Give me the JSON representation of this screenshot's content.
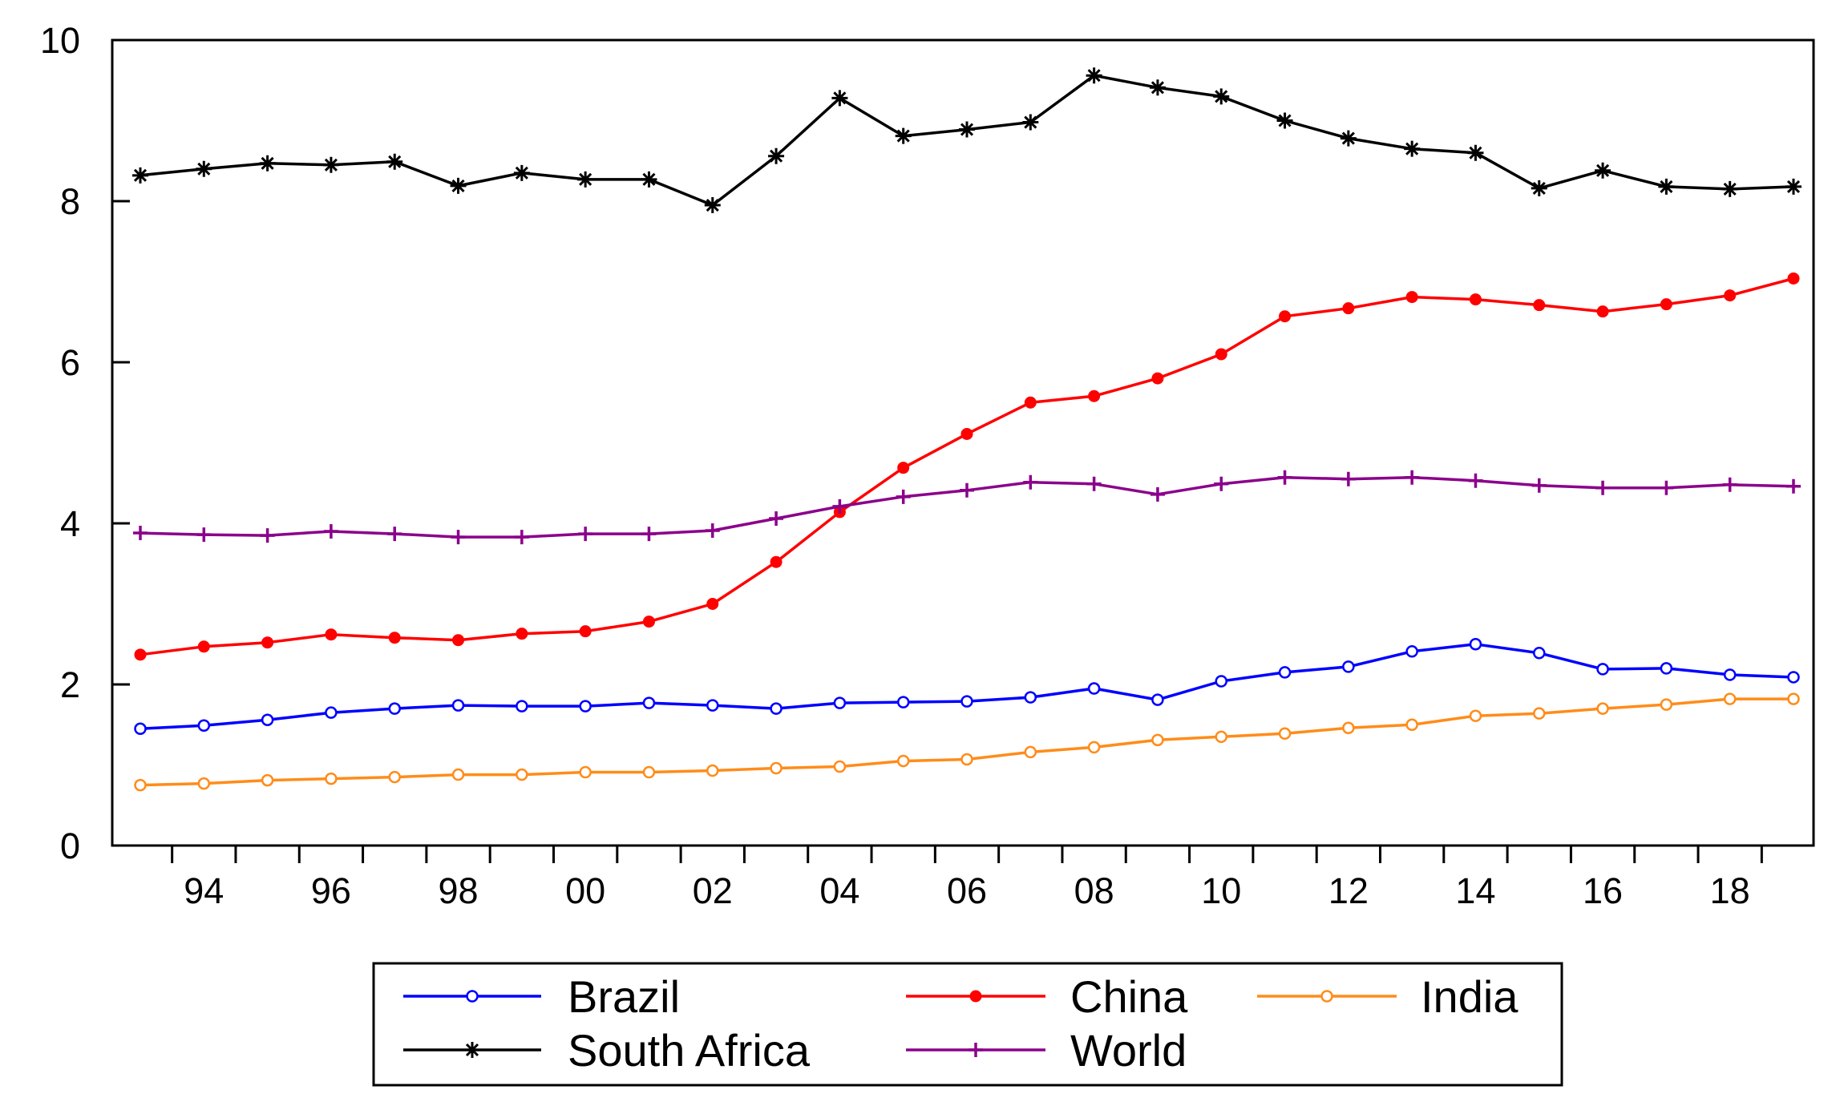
{
  "chart_data": {
    "type": "line",
    "title": "",
    "xlabel": "",
    "ylabel": "",
    "x": [
      1993,
      1994,
      1995,
      1996,
      1997,
      1998,
      1999,
      2000,
      2001,
      2002,
      2003,
      2004,
      2005,
      2006,
      2007,
      2008,
      2009,
      2010,
      2011,
      2012,
      2013,
      2014,
      2015,
      2016,
      2017,
      2018,
      2019
    ],
    "x_tick_years": [
      1994,
      1996,
      1998,
      2000,
      2002,
      2004,
      2006,
      2008,
      2010,
      2012,
      2014,
      2016,
      2018
    ],
    "x_tick_labels": [
      "94",
      "96",
      "98",
      "00",
      "02",
      "04",
      "06",
      "08",
      "10",
      "12",
      "14",
      "16",
      "18"
    ],
    "ylim": [
      0,
      10
    ],
    "y_ticks": [
      0,
      2,
      4,
      6,
      8,
      10
    ],
    "y_tick_labels": [
      "0",
      "2",
      "4",
      "6",
      "8",
      "10"
    ],
    "grid": false,
    "legend_position": "bottom",
    "series": [
      {
        "name": "Brazil",
        "color": "#0000ff",
        "marker": "open-circle",
        "values": [
          1.45,
          1.49,
          1.56,
          1.65,
          1.7,
          1.74,
          1.73,
          1.73,
          1.77,
          1.74,
          1.7,
          1.77,
          1.78,
          1.79,
          1.84,
          1.95,
          1.81,
          2.04,
          2.15,
          2.22,
          2.41,
          2.5,
          2.39,
          2.19,
          2.2,
          2.12,
          2.09
        ]
      },
      {
        "name": "China",
        "color": "#ff0000",
        "marker": "filled-circle",
        "values": [
          2.37,
          2.47,
          2.52,
          2.62,
          2.58,
          2.55,
          2.63,
          2.66,
          2.78,
          3.0,
          3.52,
          4.14,
          4.69,
          5.11,
          5.5,
          5.58,
          5.8,
          6.1,
          6.57,
          6.67,
          6.81,
          6.78,
          6.71,
          6.63,
          6.72,
          6.83,
          7.04
        ]
      },
      {
        "name": "India",
        "color": "#ff8c1a",
        "marker": "open-circle",
        "values": [
          0.75,
          0.77,
          0.81,
          0.83,
          0.85,
          0.88,
          0.88,
          0.91,
          0.91,
          0.93,
          0.96,
          0.98,
          1.05,
          1.07,
          1.16,
          1.22,
          1.31,
          1.35,
          1.39,
          1.46,
          1.5,
          1.61,
          1.64,
          1.7,
          1.75,
          1.82,
          1.82
        ]
      },
      {
        "name": "South Africa",
        "color": "#000000",
        "marker": "asterisk",
        "values": [
          8.32,
          8.4,
          8.47,
          8.45,
          8.49,
          8.19,
          8.35,
          8.27,
          8.27,
          7.95,
          8.56,
          9.28,
          8.81,
          8.89,
          8.98,
          9.56,
          9.41,
          9.3,
          9.0,
          8.78,
          8.65,
          8.6,
          8.16,
          8.38,
          8.18,
          8.15,
          8.18
        ]
      },
      {
        "name": "World",
        "color": "#8b008b",
        "marker": "plus",
        "values": [
          3.88,
          3.86,
          3.85,
          3.9,
          3.87,
          3.83,
          3.83,
          3.87,
          3.87,
          3.91,
          4.06,
          4.21,
          4.33,
          4.41,
          4.51,
          4.49,
          4.36,
          4.49,
          4.57,
          4.55,
          4.57,
          4.53,
          4.47,
          4.44,
          4.44,
          4.48,
          4.46
        ]
      }
    ]
  }
}
